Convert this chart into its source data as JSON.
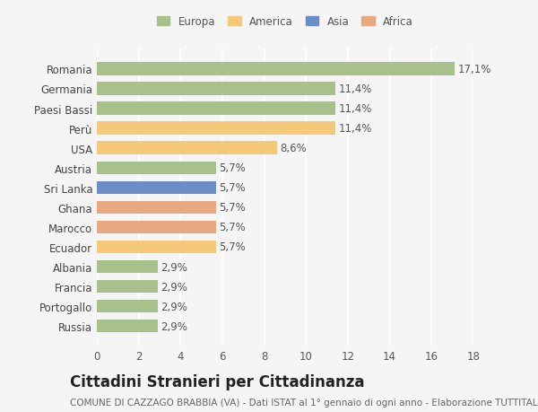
{
  "countries": [
    "Romania",
    "Germania",
    "Paesi Bassi",
    "Perù",
    "USA",
    "Austria",
    "Sri Lanka",
    "Ghana",
    "Marocco",
    "Ecuador",
    "Albania",
    "Francia",
    "Portogallo",
    "Russia"
  ],
  "values": [
    17.1,
    11.4,
    11.4,
    11.4,
    8.6,
    5.7,
    5.7,
    5.7,
    5.7,
    5.7,
    2.9,
    2.9,
    2.9,
    2.9
  ],
  "labels": [
    "17,1%",
    "11,4%",
    "11,4%",
    "11,4%",
    "8,6%",
    "5,7%",
    "5,7%",
    "5,7%",
    "5,7%",
    "5,7%",
    "2,9%",
    "2,9%",
    "2,9%",
    "2,9%"
  ],
  "colors": [
    "#a8c18a",
    "#a8c18a",
    "#a8c18a",
    "#f5c97a",
    "#f5c97a",
    "#a8c18a",
    "#6b8ec9",
    "#e8a882",
    "#e8a882",
    "#f5c97a",
    "#a8c18a",
    "#a8c18a",
    "#a8c18a",
    "#a8c18a"
  ],
  "legend": {
    "labels": [
      "Europa",
      "America",
      "Asia",
      "Africa"
    ],
    "colors": [
      "#a8c18a",
      "#f5c97a",
      "#6b8ec9",
      "#e8a882"
    ]
  },
  "title": "Cittadini Stranieri per Cittadinanza",
  "subtitle": "COMUNE DI CAZZAGO BRABBIA (VA) - Dati ISTAT al 1° gennaio di ogni anno - Elaborazione TUTTITALIA.IT",
  "xlim": [
    0,
    18
  ],
  "xticks": [
    0,
    2,
    4,
    6,
    8,
    10,
    12,
    14,
    16,
    18
  ],
  "background_color": "#f5f5f5",
  "grid_color": "#ffffff",
  "bar_height": 0.65,
  "title_fontsize": 12,
  "subtitle_fontsize": 7.5,
  "label_fontsize": 8.5,
  "tick_fontsize": 8.5
}
